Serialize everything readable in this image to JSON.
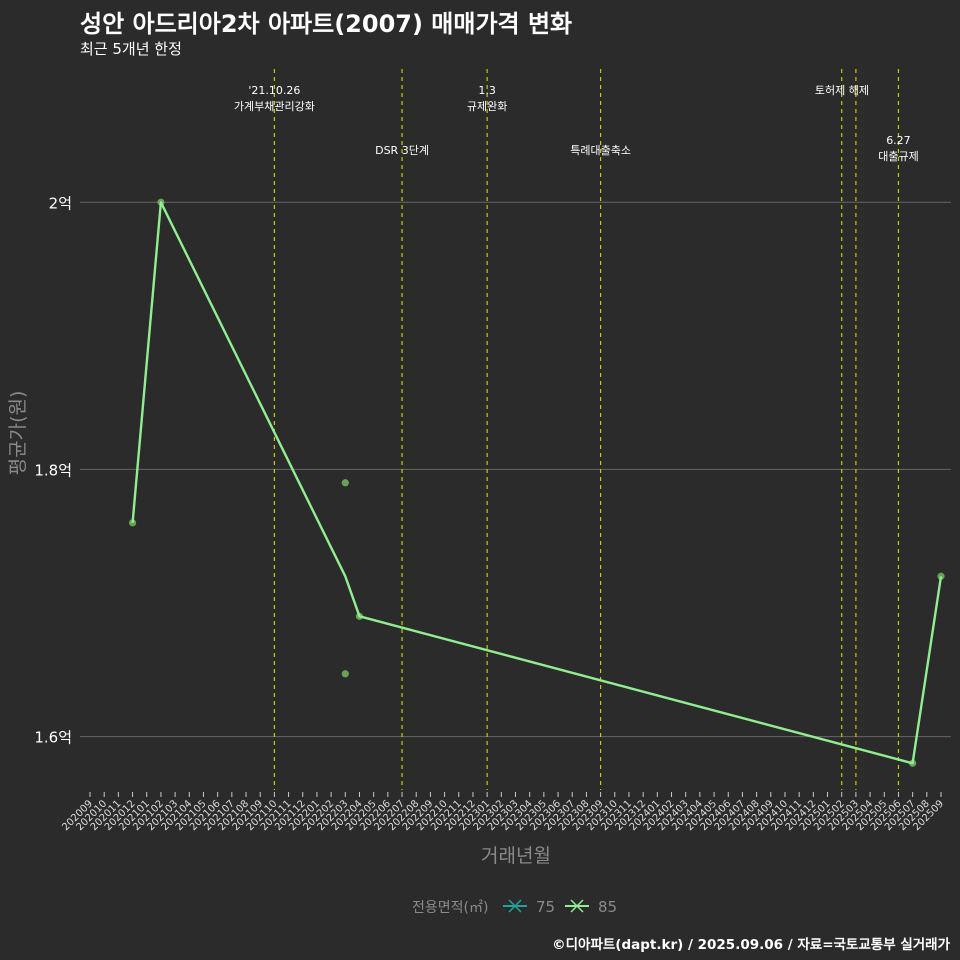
{
  "header": {
    "title": "성안 아드리아2차 아파트(2007) 매매가격 변화",
    "subtitle": "최근 5개년 한정"
  },
  "caption": "©디아파트(dapt.kr) / 2025.09.06 / 자료=국토교통부 실거래가",
  "colors": {
    "background": "#2b2b2b",
    "grid": "#666666",
    "vline": "#c8c800",
    "series75": "#1fa39a",
    "series85": "#90ee90",
    "points": "#6fae5c"
  },
  "chart_data": {
    "type": "line",
    "xlabel": "거래년월",
    "ylabel": "평균가(원)",
    "ylim": [
      1.56,
      2.105
    ],
    "yticks": [
      {
        "value": 1.6,
        "label": "1.6억"
      },
      {
        "value": 1.8,
        "label": "1.8억"
      },
      {
        "value": 2.0,
        "label": "2억"
      }
    ],
    "categories": [
      "202009",
      "202010",
      "202011",
      "202012",
      "202101",
      "202102",
      "202103",
      "202104",
      "202105",
      "202106",
      "202107",
      "202108",
      "202109",
      "202110",
      "202111",
      "202112",
      "202201",
      "202202",
      "202203",
      "202204",
      "202205",
      "202206",
      "202207",
      "202208",
      "202209",
      "202210",
      "202211",
      "202212",
      "202301",
      "202302",
      "202303",
      "202304",
      "202305",
      "202306",
      "202307",
      "202308",
      "202309",
      "202310",
      "202311",
      "202312",
      "202401",
      "202402",
      "202403",
      "202404",
      "202405",
      "202406",
      "202407",
      "202408",
      "202409",
      "202410",
      "202411",
      "202412",
      "202501",
      "202502",
      "202503",
      "202504",
      "202505",
      "202506",
      "202507",
      "202508",
      "202509"
    ],
    "series": [
      {
        "name": "75",
        "points": []
      },
      {
        "name": "85",
        "points": [
          {
            "x": "202012",
            "y": 1.76
          },
          {
            "x": "202102",
            "y": 2.0
          },
          {
            "x": "202203",
            "y": 1.72
          },
          {
            "x": "202204",
            "y": 1.69
          },
          {
            "x": "202507",
            "y": 1.58
          },
          {
            "x": "202509",
            "y": 1.72
          }
        ]
      }
    ],
    "scatter": [
      {
        "x": "202012",
        "y": 1.76
      },
      {
        "x": "202102",
        "y": 2.0
      },
      {
        "x": "202203",
        "y": 1.79
      },
      {
        "x": "202203",
        "y": 1.647
      },
      {
        "x": "202204",
        "y": 1.69
      },
      {
        "x": "202507",
        "y": 1.58
      },
      {
        "x": "202509",
        "y": 1.72
      }
    ],
    "events": [
      {
        "x": "202110",
        "label": "'21.10.26\n가계부채관리강화",
        "row": 0
      },
      {
        "x": "202207",
        "label": "DSR 3단계",
        "row": 1
      },
      {
        "x": "202301",
        "label": "1.3\n규제완화",
        "row": 0
      },
      {
        "x": "202309",
        "label": "특례대출축소",
        "row": 1
      },
      {
        "x": "202502",
        "label": "",
        "row": 0
      },
      {
        "x": "202503",
        "label": "토허제 해제",
        "row": 0,
        "offset": -1
      },
      {
        "x": "202506",
        "label": "6.27\n대출규제",
        "row": 2
      }
    ],
    "legend": {
      "title": "전용면적(㎡)",
      "position": "bottom",
      "items": [
        {
          "name": "75",
          "color": "#1fa39a"
        },
        {
          "name": "85",
          "color": "#90ee90"
        }
      ]
    }
  }
}
